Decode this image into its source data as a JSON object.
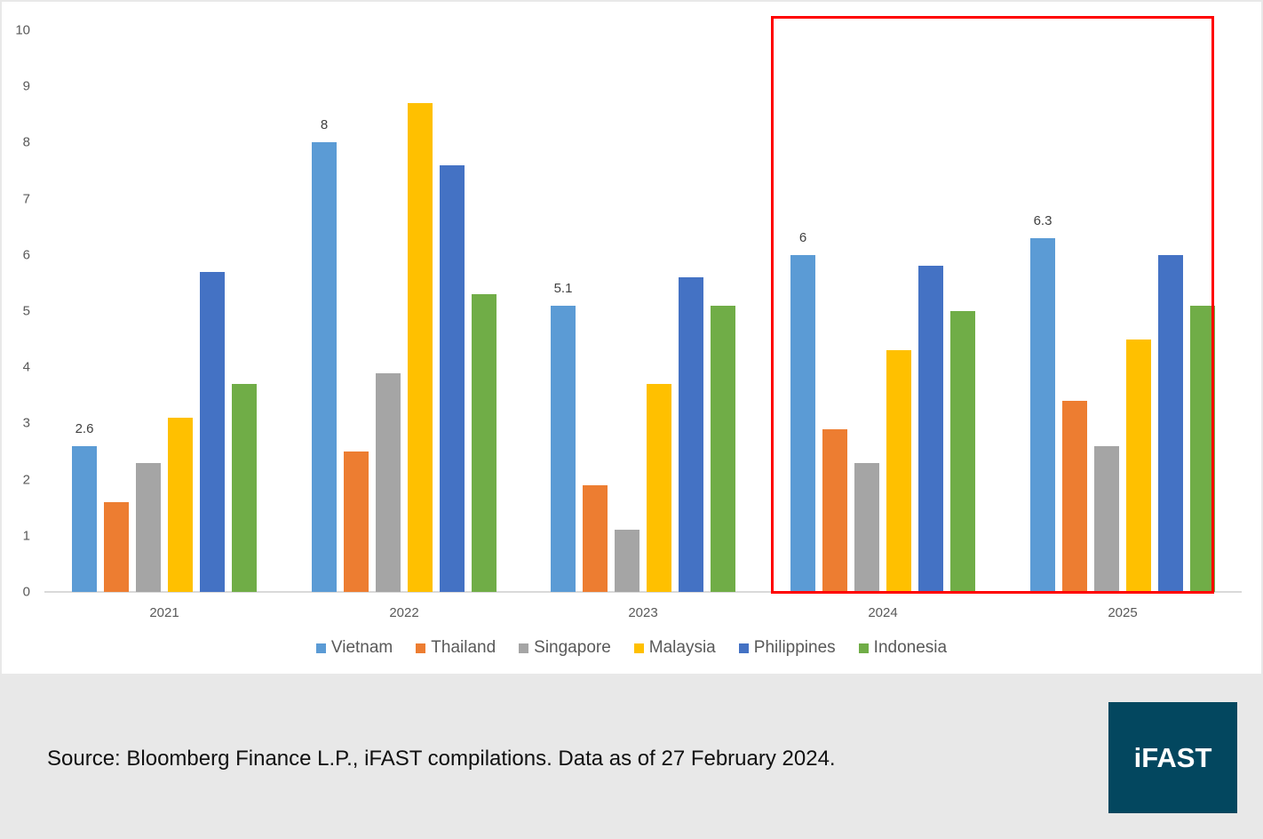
{
  "chart_data": {
    "type": "bar",
    "title": "",
    "xlabel": "",
    "ylabel": "",
    "ylim": [
      0,
      10
    ],
    "yticks": [
      0,
      1,
      2,
      3,
      4,
      5,
      6,
      7,
      8,
      9,
      10
    ],
    "grid": false,
    "legend_position": "bottom",
    "categories": [
      "2021",
      "2022",
      "2023",
      "2024",
      "2025"
    ],
    "series": [
      {
        "name": "Vietnam",
        "color": "#5b9bd5",
        "values": [
          2.6,
          8.0,
          5.1,
          6.0,
          6.3
        ],
        "data_labels": [
          "2.6",
          "8",
          "5.1",
          "6",
          "6.3"
        ]
      },
      {
        "name": "Thailand",
        "color": "#ed7d31",
        "values": [
          1.6,
          2.5,
          1.9,
          2.9,
          3.4
        ]
      },
      {
        "name": "Singapore",
        "color": "#a5a5a5",
        "values": [
          2.3,
          3.9,
          1.1,
          2.3,
          2.6
        ]
      },
      {
        "name": "Malaysia",
        "color": "#ffc000",
        "values": [
          3.1,
          8.7,
          3.7,
          4.3,
          4.5
        ]
      },
      {
        "name": "Philippines",
        "color": "#4472c4",
        "values": [
          5.7,
          7.6,
          5.6,
          5.8,
          6.0
        ]
      },
      {
        "name": "Indonesia",
        "color": "#70ad47",
        "values": [
          3.7,
          5.3,
          5.1,
          5.0,
          5.1
        ]
      }
    ],
    "annotations": [
      {
        "type": "highlight-box",
        "covers": [
          "2024",
          "2025"
        ],
        "color": "#ff0000"
      }
    ]
  },
  "footer": {
    "source": "Source: Bloomberg Finance L.P., iFAST compilations. Data as of 27 February 2024.",
    "logo_text": "iFAST",
    "logo_color": "#03475f"
  }
}
